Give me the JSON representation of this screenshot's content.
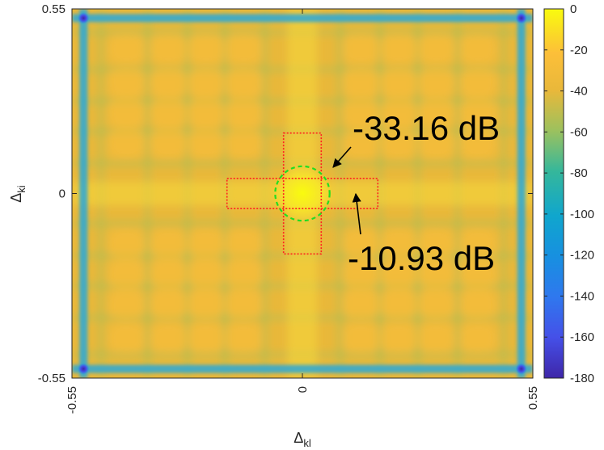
{
  "chart_data": {
    "type": "heatmap",
    "title": "",
    "xlabel": "Δ",
    "xlabel_sub": "kl",
    "ylabel": "Δ",
    "ylabel_sub": "ki",
    "xlim": [
      -0.55,
      0.55
    ],
    "ylim": [
      -0.55,
      0.55
    ],
    "x_ticks": [
      {
        "value": -0.55,
        "label": "-0.55"
      },
      {
        "value": 0,
        "label": "0"
      },
      {
        "value": 0.55,
        "label": "0.55"
      }
    ],
    "y_ticks": [
      {
        "value": 0.55,
        "label": "0.55"
      },
      {
        "value": 0,
        "label": "0"
      },
      {
        "value": -0.55,
        "label": "-0.55"
      }
    ],
    "colorbar": {
      "colormap": "parula",
      "range": [
        -180,
        0
      ],
      "ticks": [
        {
          "value": 0,
          "label": "0"
        },
        {
          "value": -20,
          "label": "-20"
        },
        {
          "value": -40,
          "label": "-40"
        },
        {
          "value": -60,
          "label": "-60"
        },
        {
          "value": -80,
          "label": "-80"
        },
        {
          "value": -100,
          "label": "-100"
        },
        {
          "value": -120,
          "label": "-120"
        },
        {
          "value": -140,
          "label": "-140"
        },
        {
          "value": -160,
          "label": "-160"
        },
        {
          "value": -180,
          "label": "-180"
        }
      ]
    },
    "peak": {
      "x": 0,
      "y": 0,
      "value": 0
    },
    "deep_nulls": [
      {
        "x": -0.55,
        "y": 0.55,
        "value": -170
      },
      {
        "x": 0.55,
        "y": 0.55,
        "value": -170
      },
      {
        "x": -0.55,
        "y": -0.55,
        "value": -170
      },
      {
        "x": 0.55,
        "y": -0.55,
        "value": -170
      }
    ],
    "regions": [
      {
        "kind": "rectangle",
        "style": "dotted",
        "color": "#ff2020",
        "x_range": [
          -0.18,
          0.18
        ],
        "y_range": [
          -0.045,
          0.045
        ]
      },
      {
        "kind": "rectangle",
        "style": "dotted",
        "color": "#ff2020",
        "x_range": [
          -0.045,
          0.045
        ],
        "y_range": [
          -0.18,
          0.18
        ]
      },
      {
        "kind": "circle",
        "style": "dashed",
        "color": "#22dd22",
        "center": [
          0,
          0
        ],
        "radius": 0.065
      }
    ],
    "annotations": [
      {
        "text": "-33.16 dB",
        "target": [
          0.075,
          0.0
        ],
        "points_to": "dotted red circle boundary"
      },
      {
        "text": "-10.93 dB",
        "target": [
          0.13,
          0.0
        ],
        "points_to": "dashed-red rectangle"
      }
    ]
  },
  "colors": {
    "background": "#e9b83a",
    "stripe_green": "#74b964",
    "null_line": "#2aa8d8",
    "peak": "#f9fb0e",
    "annotation": "#000000"
  }
}
